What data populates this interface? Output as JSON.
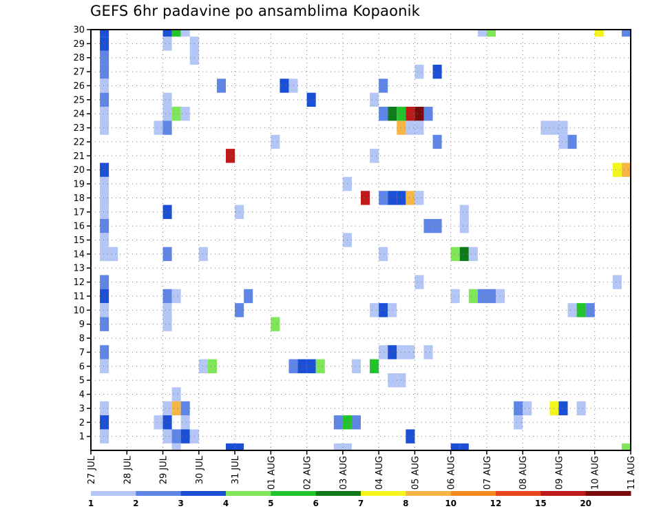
{
  "title": "GEFS 6hr padavine po ansamblima Kopaonik",
  "chart_data": {
    "type": "heatmap",
    "title": "GEFS 6hr padavine po ansamblima Kopaonik",
    "x_tick_labels": [
      "27 JUL",
      "28 JUL",
      "29 JUL",
      "30 JUL",
      "31 JUL",
      "01 AUG",
      "02 AUG",
      "03 AUG",
      "04 AUG",
      "05 AUG",
      "06 AUG",
      "07 AUG",
      "08 AUG",
      "09 AUG",
      "10 AUG",
      "11 AUG"
    ],
    "y_tick_labels": [
      1,
      2,
      3,
      4,
      5,
      6,
      7,
      8,
      9,
      10,
      11,
      12,
      13,
      14,
      15,
      16,
      17,
      18,
      19,
      20,
      21,
      22,
      23,
      24,
      25,
      26,
      27,
      28,
      29,
      30
    ],
    "x_unit": "days since 27 JUL (6-hour steps)",
    "x_range": [
      0,
      15
    ],
    "y_range": [
      0,
      30
    ],
    "grid": true,
    "colorbar": {
      "labels": [
        "1",
        "2",
        "3",
        "4",
        "5",
        "6",
        "7",
        "8",
        "10",
        "12",
        "15",
        "20"
      ],
      "colors": [
        "#b3c6f5",
        "#5f86e6",
        "#1a4fd6",
        "#7ee657",
        "#22c42b",
        "#0f7a1a",
        "#f5f51e",
        "#f5b646",
        "#f58a1e",
        "#e6461e",
        "#be1a1a",
        "#7a0a0a"
      ]
    },
    "cells": [
      {
        "x": 0.25,
        "y": 30,
        "c": "#1a4fd6"
      },
      {
        "x": 0.25,
        "y": 29,
        "c": "#1a4fd6"
      },
      {
        "x": 0.25,
        "y": 28,
        "c": "#5f86e6"
      },
      {
        "x": 0.25,
        "y": 27,
        "c": "#5f86e6"
      },
      {
        "x": 0.25,
        "y": 26,
        "c": "#b3c6f5"
      },
      {
        "x": 0.25,
        "y": 25,
        "c": "#5f86e6"
      },
      {
        "x": 0.25,
        "y": 24,
        "c": "#b3c6f5"
      },
      {
        "x": 0.25,
        "y": 23,
        "c": "#b3c6f5"
      },
      {
        "x": 0.25,
        "y": 20,
        "c": "#1a4fd6"
      },
      {
        "x": 0.25,
        "y": 19,
        "c": "#b3c6f5"
      },
      {
        "x": 0.25,
        "y": 18,
        "c": "#b3c6f5"
      },
      {
        "x": 0.25,
        "y": 17,
        "c": "#b3c6f5"
      },
      {
        "x": 0.25,
        "y": 16,
        "c": "#5f86e6"
      },
      {
        "x": 0.25,
        "y": 15,
        "c": "#b3c6f5"
      },
      {
        "x": 0.25,
        "y": 14,
        "c": "#b3c6f5"
      },
      {
        "x": 0.5,
        "y": 14,
        "c": "#b3c6f5"
      },
      {
        "x": 0.25,
        "y": 12,
        "c": "#5f86e6"
      },
      {
        "x": 0.25,
        "y": 11,
        "c": "#1a4fd6"
      },
      {
        "x": 0.25,
        "y": 10,
        "c": "#b3c6f5"
      },
      {
        "x": 0.25,
        "y": 9,
        "c": "#5f86e6"
      },
      {
        "x": 0.25,
        "y": 7,
        "c": "#5f86e6"
      },
      {
        "x": 0.25,
        "y": 6,
        "c": "#b3c6f5"
      },
      {
        "x": 0.25,
        "y": 3,
        "c": "#b3c6f5"
      },
      {
        "x": 0.25,
        "y": 2,
        "c": "#1a4fd6"
      },
      {
        "x": 0.25,
        "y": 1,
        "c": "#b3c6f5"
      },
      {
        "x": 2.0,
        "y": 30,
        "c": "#1a4fd6"
      },
      {
        "x": 2.25,
        "y": 30,
        "c": "#22c42b"
      },
      {
        "x": 2.5,
        "y": 30,
        "c": "#b3c6f5"
      },
      {
        "x": 2.0,
        "y": 29,
        "c": "#b3c6f5"
      },
      {
        "x": 2.75,
        "y": 29,
        "c": "#b3c6f5"
      },
      {
        "x": 2.75,
        "y": 28,
        "c": "#b3c6f5"
      },
      {
        "x": 2.0,
        "y": 25,
        "c": "#b3c6f5"
      },
      {
        "x": 2.0,
        "y": 24,
        "c": "#b3c6f5"
      },
      {
        "x": 2.25,
        "y": 24,
        "c": "#7ee657"
      },
      {
        "x": 2.5,
        "y": 24,
        "c": "#b3c6f5"
      },
      {
        "x": 1.75,
        "y": 23,
        "c": "#b3c6f5"
      },
      {
        "x": 2.0,
        "y": 23,
        "c": "#5f86e6"
      },
      {
        "x": 2.0,
        "y": 17,
        "c": "#1a4fd6"
      },
      {
        "x": 2.0,
        "y": 14,
        "c": "#5f86e6"
      },
      {
        "x": 2.0,
        "y": 11,
        "c": "#5f86e6"
      },
      {
        "x": 2.25,
        "y": 11,
        "c": "#b3c6f5"
      },
      {
        "x": 2.0,
        "y": 10,
        "c": "#b3c6f5"
      },
      {
        "x": 2.0,
        "y": 9,
        "c": "#b3c6f5"
      },
      {
        "x": 2.25,
        "y": 4,
        "c": "#b3c6f5"
      },
      {
        "x": 2.0,
        "y": 3,
        "c": "#b3c6f5"
      },
      {
        "x": 2.25,
        "y": 3,
        "c": "#f5b646"
      },
      {
        "x": 2.5,
        "y": 3,
        "c": "#5f86e6"
      },
      {
        "x": 1.75,
        "y": 2,
        "c": "#b3c6f5"
      },
      {
        "x": 2.0,
        "y": 2,
        "c": "#1a4fd6"
      },
      {
        "x": 2.5,
        "y": 2,
        "c": "#b3c6f5"
      },
      {
        "x": 2.0,
        "y": 1,
        "c": "#b3c6f5"
      },
      {
        "x": 2.25,
        "y": 1,
        "c": "#5f86e6"
      },
      {
        "x": 2.5,
        "y": 1,
        "c": "#1a4fd6"
      },
      {
        "x": 2.75,
        "y": 1,
        "c": "#b3c6f5"
      },
      {
        "x": 2.25,
        "y": 0,
        "c": "#b3c6f5"
      },
      {
        "x": 3.0,
        "y": 14,
        "c": "#b3c6f5"
      },
      {
        "x": 3.0,
        "y": 6,
        "c": "#b3c6f5"
      },
      {
        "x": 3.25,
        "y": 6,
        "c": "#7ee657"
      },
      {
        "x": 3.5,
        "y": 26,
        "c": "#5f86e6"
      },
      {
        "x": 3.75,
        "y": 21,
        "c": "#be1a1a"
      },
      {
        "x": 4.0,
        "y": 17,
        "c": "#b3c6f5"
      },
      {
        "x": 4.0,
        "y": 10,
        "c": "#5f86e6"
      },
      {
        "x": 4.25,
        "y": 11,
        "c": "#5f86e6"
      },
      {
        "x": 3.75,
        "y": 0,
        "c": "#1a4fd6"
      },
      {
        "x": 4.0,
        "y": 0,
        "c": "#1a4fd6"
      },
      {
        "x": 5.25,
        "y": 26,
        "c": "#1a4fd6"
      },
      {
        "x": 5.5,
        "y": 26,
        "c": "#b3c6f5"
      },
      {
        "x": 5.0,
        "y": 22,
        "c": "#b3c6f5"
      },
      {
        "x": 5.0,
        "y": 9,
        "c": "#7ee657"
      },
      {
        "x": 5.5,
        "y": 6,
        "c": "#5f86e6"
      },
      {
        "x": 5.75,
        "y": 6,
        "c": "#1a4fd6"
      },
      {
        "x": 6.0,
        "y": 6,
        "c": "#1a4fd6"
      },
      {
        "x": 6.25,
        "y": 6,
        "c": "#7ee657"
      },
      {
        "x": 6.0,
        "y": 25,
        "c": "#1a4fd6"
      },
      {
        "x": 7.0,
        "y": 19,
        "c": "#b3c6f5"
      },
      {
        "x": 7.0,
        "y": 15,
        "c": "#b3c6f5"
      },
      {
        "x": 7.25,
        "y": 6,
        "c": "#b3c6f5"
      },
      {
        "x": 6.75,
        "y": 2,
        "c": "#5f86e6"
      },
      {
        "x": 7.0,
        "y": 2,
        "c": "#22c42b"
      },
      {
        "x": 7.25,
        "y": 2,
        "c": "#5f86e6"
      },
      {
        "x": 6.75,
        "y": 0,
        "c": "#b3c6f5"
      },
      {
        "x": 7.0,
        "y": 0,
        "c": "#b3c6f5"
      },
      {
        "x": 7.5,
        "y": 18,
        "c": "#be1a1a"
      },
      {
        "x": 7.75,
        "y": 25,
        "c": "#b3c6f5"
      },
      {
        "x": 7.75,
        "y": 21,
        "c": "#b3c6f5"
      },
      {
        "x": 7.75,
        "y": 6,
        "c": "#22c42b"
      },
      {
        "x": 8.0,
        "y": 26,
        "c": "#5f86e6"
      },
      {
        "x": 8.0,
        "y": 24,
        "c": "#5f86e6"
      },
      {
        "x": 8.25,
        "y": 24,
        "c": "#0f7a1a"
      },
      {
        "x": 8.5,
        "y": 24,
        "c": "#22c42b"
      },
      {
        "x": 8.75,
        "y": 24,
        "c": "#be1a1a"
      },
      {
        "x": 9.0,
        "y": 24,
        "c": "#7a0a0a"
      },
      {
        "x": 9.25,
        "y": 24,
        "c": "#5f86e6"
      },
      {
        "x": 8.5,
        "y": 23,
        "c": "#f5b646"
      },
      {
        "x": 8.75,
        "y": 23,
        "c": "#b3c6f5"
      },
      {
        "x": 9.0,
        "y": 23,
        "c": "#b3c6f5"
      },
      {
        "x": 8.0,
        "y": 18,
        "c": "#5f86e6"
      },
      {
        "x": 8.25,
        "y": 18,
        "c": "#1a4fd6"
      },
      {
        "x": 8.5,
        "y": 18,
        "c": "#1a4fd6"
      },
      {
        "x": 8.75,
        "y": 18,
        "c": "#f5b646"
      },
      {
        "x": 9.0,
        "y": 18,
        "c": "#b3c6f5"
      },
      {
        "x": 8.0,
        "y": 14,
        "c": "#b3c6f5"
      },
      {
        "x": 7.75,
        "y": 10,
        "c": "#b3c6f5"
      },
      {
        "x": 8.0,
        "y": 10,
        "c": "#1a4fd6"
      },
      {
        "x": 8.25,
        "y": 10,
        "c": "#b3c6f5"
      },
      {
        "x": 8.0,
        "y": 7,
        "c": "#b3c6f5"
      },
      {
        "x": 8.25,
        "y": 7,
        "c": "#1a4fd6"
      },
      {
        "x": 8.5,
        "y": 7,
        "c": "#b3c6f5"
      },
      {
        "x": 8.75,
        "y": 7,
        "c": "#b3c6f5"
      },
      {
        "x": 8.25,
        "y": 5,
        "c": "#b3c6f5"
      },
      {
        "x": 8.5,
        "y": 5,
        "c": "#b3c6f5"
      },
      {
        "x": 8.75,
        "y": 1,
        "c": "#1a4fd6"
      },
      {
        "x": 9.0,
        "y": 27,
        "c": "#b3c6f5"
      },
      {
        "x": 9.5,
        "y": 27,
        "c": "#1a4fd6"
      },
      {
        "x": 9.5,
        "y": 22,
        "c": "#5f86e6"
      },
      {
        "x": 9.25,
        "y": 16,
        "c": "#5f86e6"
      },
      {
        "x": 9.5,
        "y": 16,
        "c": "#5f86e6"
      },
      {
        "x": 9.0,
        "y": 12,
        "c": "#b3c6f5"
      },
      {
        "x": 9.25,
        "y": 7,
        "c": "#b3c6f5"
      },
      {
        "x": 10.25,
        "y": 17,
        "c": "#b3c6f5"
      },
      {
        "x": 10.25,
        "y": 16,
        "c": "#b3c6f5"
      },
      {
        "x": 10.0,
        "y": 14,
        "c": "#7ee657"
      },
      {
        "x": 10.25,
        "y": 14,
        "c": "#0f7a1a"
      },
      {
        "x": 10.5,
        "y": 14,
        "c": "#b3c6f5"
      },
      {
        "x": 10.0,
        "y": 11,
        "c": "#b3c6f5"
      },
      {
        "x": 10.5,
        "y": 11,
        "c": "#7ee657"
      },
      {
        "x": 10.75,
        "y": 11,
        "c": "#5f86e6"
      },
      {
        "x": 11.0,
        "y": 11,
        "c": "#5f86e6"
      },
      {
        "x": 11.25,
        "y": 11,
        "c": "#b3c6f5"
      },
      {
        "x": 10.0,
        "y": 0,
        "c": "#1a4fd6"
      },
      {
        "x": 10.25,
        "y": 0,
        "c": "#1a4fd6"
      },
      {
        "x": 10.75,
        "y": 30,
        "c": "#b3c6f5"
      },
      {
        "x": 11.0,
        "y": 30,
        "c": "#7ee657"
      },
      {
        "x": 11.75,
        "y": 3,
        "c": "#5f86e6"
      },
      {
        "x": 12.0,
        "y": 3,
        "c": "#b3c6f5"
      },
      {
        "x": 11.75,
        "y": 2,
        "c": "#b3c6f5"
      },
      {
        "x": 12.5,
        "y": 23,
        "c": "#b3c6f5"
      },
      {
        "x": 12.75,
        "y": 23,
        "c": "#b3c6f5"
      },
      {
        "x": 13.0,
        "y": 23,
        "c": "#b3c6f5"
      },
      {
        "x": 13.0,
        "y": 22,
        "c": "#b3c6f5"
      },
      {
        "x": 13.25,
        "y": 22,
        "c": "#5f86e6"
      },
      {
        "x": 13.25,
        "y": 10,
        "c": "#b3c6f5"
      },
      {
        "x": 13.5,
        "y": 10,
        "c": "#22c42b"
      },
      {
        "x": 13.75,
        "y": 10,
        "c": "#5f86e6"
      },
      {
        "x": 12.75,
        "y": 3,
        "c": "#f5f51e"
      },
      {
        "x": 13.0,
        "y": 3,
        "c": "#1a4fd6"
      },
      {
        "x": 13.5,
        "y": 3,
        "c": "#b3c6f5"
      },
      {
        "x": 14.0,
        "y": 30,
        "c": "#f5f51e"
      },
      {
        "x": 14.5,
        "y": 20,
        "c": "#f5f51e"
      },
      {
        "x": 14.75,
        "y": 20,
        "c": "#f5b646"
      },
      {
        "x": 14.5,
        "y": 12,
        "c": "#b3c6f5"
      },
      {
        "x": 14.75,
        "y": 30,
        "c": "#5f86e6"
      },
      {
        "x": 14.75,
        "y": 0,
        "c": "#7ee657"
      }
    ]
  }
}
